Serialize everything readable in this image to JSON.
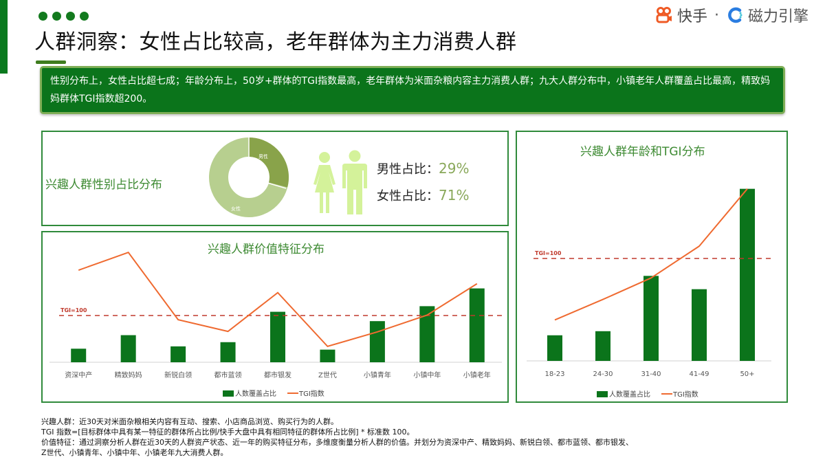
{
  "header": {
    "title": "人群洞察：女性占比较高，老年群体为主力消费人群",
    "logo_kuaishou": "快手",
    "logo_sep": "·",
    "logo_cili": "磁力引擎"
  },
  "summary": {
    "text": "性别分布上，女性占比超七成；年龄分布上，50岁+群体的TGI指数最高，老年群体为米面杂粮内容主力消费人群；九大人群分布中，小镇老年人群覆盖占比最高，精致妈妈群体TGI指数超200。"
  },
  "gender_panel": {
    "title": "兴趣人群性别占比分布",
    "male_label": "男性占比：",
    "male_value": "29%",
    "female_label": "女性占比：",
    "female_value": "71%",
    "donut_male_label": "男性",
    "donut_female_label": "女性"
  },
  "value_panel": {
    "title": "兴趣人群价值特征分布",
    "tgi_ref_label": "TGI=100",
    "legend_bar": "人数覆盖占比",
    "legend_line": "TGI指数"
  },
  "age_panel": {
    "title": "兴趣人群年龄和TGI分布",
    "tgi_ref_label": "TGI=100",
    "legend_bar": "人数覆盖占比",
    "legend_line": "TGI指数"
  },
  "footnotes": {
    "line1": "兴趣人群：近30天对米面杂粮相关内容有互动、搜索、小店商品浏览、购买行为的人群。",
    "line2": "TGI 指数=[目标群体中具有某一特征的群体所占比例/快手大盘中具有相同特征的群体所占比例] * 标准数 100。",
    "line3": "价值特征：通过洞察分析人群在近30天的人群资产状态、近一年的购买特征分布，多维度衡量分析人群的价值。并划分为资深中产、精致妈妈、新锐白领、都市蓝领、都市银发、",
    "line4": "Z世代、小镇青年、小镇中年、小镇老年九大消费人群。"
  },
  "colors": {
    "bar": "#0b741b",
    "line": "#ef6a30",
    "tgi_ref": "#c0392b",
    "donut_male": "#89a34a",
    "donut_female": "#b7cf8f"
  },
  "chart_data": [
    {
      "type": "pie",
      "title": "兴趣人群性别占比分布",
      "categories": [
        "男性",
        "女性"
      ],
      "values": [
        29,
        71
      ],
      "unit": "%"
    },
    {
      "type": "bar",
      "title": "兴趣人群价值特征分布",
      "categories": [
        "资深中产",
        "精致妈妈",
        "新锐白领",
        "都市蓝领",
        "都市银发",
        "Z世代",
        "小镇青年",
        "小镇中年",
        "小镇老年"
      ],
      "series": [
        {
          "name": "人数覆盖占比",
          "type": "bar",
          "values": [
            29,
            58,
            34,
            43,
            108,
            27,
            88,
            120,
            158
          ]
        },
        {
          "name": "TGI指数",
          "type": "line",
          "values": [
            197,
            235,
            91,
            66,
            149,
            34,
            65,
            101,
            168
          ]
        }
      ],
      "reference_line": {
        "label": "TGI=100",
        "value": 100
      },
      "note": "Bar values are relative heights (no y-axis shown); TGI values estimated against TGI=100 reference line",
      "legend_position": "bottom",
      "grid": false
    },
    {
      "type": "bar",
      "title": "兴趣人群年龄和TGI分布",
      "categories": [
        "18-23",
        "24-30",
        "31-40",
        "41-49",
        "50+"
      ],
      "series": [
        {
          "name": "人数覆盖占比",
          "type": "bar",
          "values": [
            25,
            29,
            83,
            70,
            168
          ]
        },
        {
          "name": "TGI指数",
          "type": "line",
          "values": [
            40,
            60,
            81,
            112,
            168
          ]
        }
      ],
      "reference_line": {
        "label": "TGI=100",
        "value": 100
      },
      "note": "Bar values are relative heights (no y-axis shown); TGI values estimated against TGI=100 reference line",
      "legend_position": "bottom",
      "grid": false
    }
  ]
}
